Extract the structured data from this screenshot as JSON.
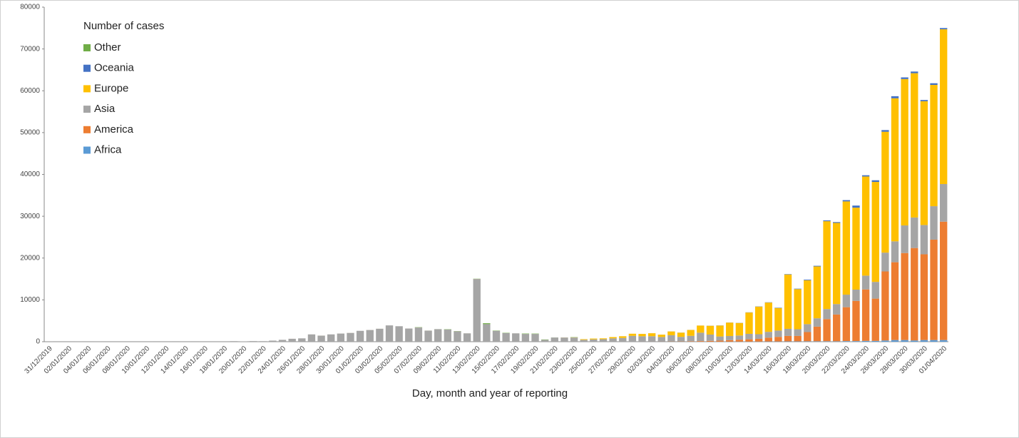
{
  "chart_data": {
    "type": "stacked_bar",
    "xlabel": "Day, month and year of reporting",
    "legend_title": "Number of cases",
    "legend": "top-left",
    "grid": false,
    "ylim": [
      0,
      80000
    ],
    "yticks": [
      0,
      10000,
      20000,
      30000,
      40000,
      50000,
      60000,
      70000,
      80000
    ],
    "categories": [
      "31/12/2019",
      null,
      "02/01/2020",
      null,
      "04/01/2020",
      null,
      "06/01/2020",
      null,
      "08/01/2020",
      null,
      "10/01/2020",
      null,
      "12/01/2020",
      null,
      "14/01/2020",
      null,
      "16/01/2020",
      null,
      "18/01/2020",
      null,
      "20/01/2020",
      null,
      "22/01/2020",
      null,
      "24/01/2020",
      null,
      "26/01/2020",
      null,
      "28/01/2020",
      null,
      "30/01/2020",
      null,
      "01/02/2020",
      null,
      "03/02/2020",
      null,
      "05/02/2020",
      null,
      "07/02/2020",
      null,
      "09/02/2020",
      null,
      "11/02/2020",
      null,
      "13/02/2020",
      null,
      "15/02/2020",
      null,
      "17/02/2020",
      null,
      "19/02/2020",
      null,
      "21/02/2020",
      null,
      "23/02/2020",
      null,
      "25/02/2020",
      null,
      "27/02/2020",
      null,
      "29/02/2020",
      null,
      "02/03/2020",
      null,
      "04/03/2020",
      null,
      "06/03/2020",
      null,
      "08/03/2020",
      null,
      "10/03/2020",
      null,
      "12/03/2020",
      null,
      "14/03/2020",
      null,
      "16/03/2020",
      null,
      "18/03/2020",
      null,
      "20/03/2020",
      null,
      "22/03/2020",
      null,
      "24/03/2020",
      null,
      "26/03/2020",
      null,
      "28/03/2020",
      null,
      "30/03/2020",
      null,
      "01/04/2020"
    ],
    "series": [
      {
        "name": "Africa",
        "color": "#5b9bd5",
        "values": [
          0,
          0,
          0,
          0,
          0,
          0,
          0,
          0,
          0,
          0,
          0,
          0,
          0,
          0,
          0,
          0,
          0,
          0,
          0,
          0,
          0,
          0,
          0,
          0,
          0,
          0,
          0,
          0,
          0,
          0,
          0,
          0,
          0,
          0,
          0,
          0,
          0,
          0,
          0,
          0,
          0,
          0,
          0,
          0,
          0,
          0,
          0,
          0,
          0,
          0,
          0,
          0,
          0,
          0,
          0,
          0,
          0,
          0,
          0,
          1,
          0,
          2,
          1,
          1,
          2,
          4,
          10,
          5,
          10,
          10,
          20,
          30,
          30,
          40,
          60,
          60,
          80,
          80,
          100,
          100,
          110,
          100,
          150,
          150,
          200,
          200,
          300,
          400,
          400,
          300,
          400,
          400,
          400
        ]
      },
      {
        "name": "America",
        "color": "#ed7d31",
        "values": [
          0,
          0,
          0,
          0,
          0,
          0,
          0,
          0,
          0,
          0,
          0,
          0,
          0,
          0,
          0,
          0,
          0,
          0,
          0,
          0,
          0,
          0,
          0,
          0,
          0,
          0,
          0,
          0,
          0,
          0,
          0,
          0,
          0,
          0,
          0,
          0,
          0,
          0,
          0,
          0,
          0,
          0,
          0,
          0,
          0,
          0,
          0,
          0,
          0,
          0,
          0,
          0,
          0,
          0,
          0,
          0,
          0,
          0,
          1,
          2,
          5,
          10,
          20,
          30,
          50,
          60,
          100,
          150,
          200,
          250,
          350,
          450,
          550,
          650,
          900,
          1100,
          1300,
          1300,
          2200,
          3500,
          5300,
          6400,
          8100,
          9600,
          12300,
          10100,
          16500,
          18600,
          20800,
          22100,
          20500,
          24000,
          28300
        ]
      },
      {
        "name": "Asia",
        "color": "#a5a5a5",
        "values": [
          27,
          0,
          0,
          17,
          0,
          15,
          0,
          0,
          0,
          0,
          0,
          1,
          0,
          1,
          0,
          1,
          0,
          4,
          17,
          136,
          77,
          149,
          131,
          259,
          444,
          700,
          800,
          1750,
          1450,
          1750,
          1950,
          2100,
          2600,
          2800,
          3100,
          3900,
          3700,
          3150,
          3400,
          2650,
          3000,
          2900,
          2500,
          2000,
          15000,
          4200,
          2600,
          2050,
          2000,
          1850,
          1850,
          450,
          1000,
          1000,
          1000,
          450,
          550,
          600,
          800,
          900,
          1400,
          1300,
          1300,
          1100,
          1500,
          1100,
          1300,
          2000,
          1500,
          1000,
          1000,
          1000,
          1300,
          1100,
          1400,
          1500,
          1700,
          1600,
          1900,
          2000,
          2400,
          2500,
          3000,
          2700,
          3300,
          4000,
          4500,
          5000,
          6600,
          7300,
          7000,
          8000,
          9000
        ]
      },
      {
        "name": "Europe",
        "color": "#ffc000",
        "values": [
          0,
          0,
          0,
          0,
          0,
          0,
          0,
          0,
          0,
          0,
          0,
          0,
          0,
          0,
          0,
          0,
          0,
          0,
          0,
          0,
          0,
          0,
          0,
          0,
          0,
          3,
          0,
          1,
          4,
          0,
          2,
          5,
          1,
          4,
          4,
          0,
          0,
          2,
          6,
          5,
          2,
          4,
          8,
          3,
          9,
          1,
          2,
          3,
          2,
          0,
          0,
          1,
          0,
          14,
          40,
          150,
          200,
          200,
          300,
          400,
          500,
          550,
          700,
          550,
          900,
          1000,
          1400,
          1700,
          2100,
          2600,
          3200,
          3000,
          5100,
          6600,
          7000,
          5400,
          13000,
          9600,
          10500,
          12400,
          21000,
          19400,
          22300,
          19600,
          23700,
          23900,
          28900,
          34200,
          35000,
          34500,
          29600,
          29000,
          37000
        ]
      },
      {
        "name": "Oceania",
        "color": "#4472c4",
        "values": [
          0,
          0,
          0,
          0,
          0,
          0,
          0,
          0,
          0,
          0,
          0,
          0,
          0,
          0,
          0,
          0,
          0,
          0,
          0,
          0,
          0,
          0,
          0,
          0,
          0,
          0,
          0,
          0,
          0,
          0,
          0,
          0,
          0,
          0,
          0,
          0,
          0,
          0,
          0,
          0,
          0,
          0,
          0,
          0,
          0,
          0,
          0,
          0,
          0,
          0,
          0,
          0,
          0,
          0,
          0,
          0,
          0,
          0,
          0,
          5,
          2,
          3,
          5,
          10,
          10,
          15,
          10,
          10,
          20,
          30,
          20,
          30,
          40,
          50,
          60,
          80,
          90,
          100,
          150,
          150,
          200,
          200,
          300,
          500,
          300,
          400,
          400,
          500,
          400,
          400,
          300,
          400,
          300
        ]
      },
      {
        "name": "Other",
        "color": "#70ad47",
        "values": [
          0,
          0,
          0,
          0,
          0,
          0,
          0,
          0,
          0,
          0,
          0,
          0,
          0,
          0,
          0,
          0,
          0,
          0,
          0,
          0,
          0,
          0,
          0,
          0,
          0,
          0,
          0,
          0,
          0,
          0,
          0,
          0,
          0,
          0,
          0,
          0,
          0,
          0,
          61,
          3,
          6,
          65,
          39,
          0,
          44,
          218,
          67,
          70,
          0,
          99,
          88,
          79,
          13,
          0,
          57,
          0,
          14,
          0,
          0,
          0,
          0,
          0,
          0,
          0,
          0,
          0,
          0,
          0,
          0,
          0,
          0,
          0,
          0,
          0,
          0,
          0,
          0,
          0,
          0,
          0,
          0,
          0,
          0,
          0,
          0,
          0,
          0,
          0,
          0,
          0,
          0,
          0,
          0
        ]
      }
    ]
  }
}
